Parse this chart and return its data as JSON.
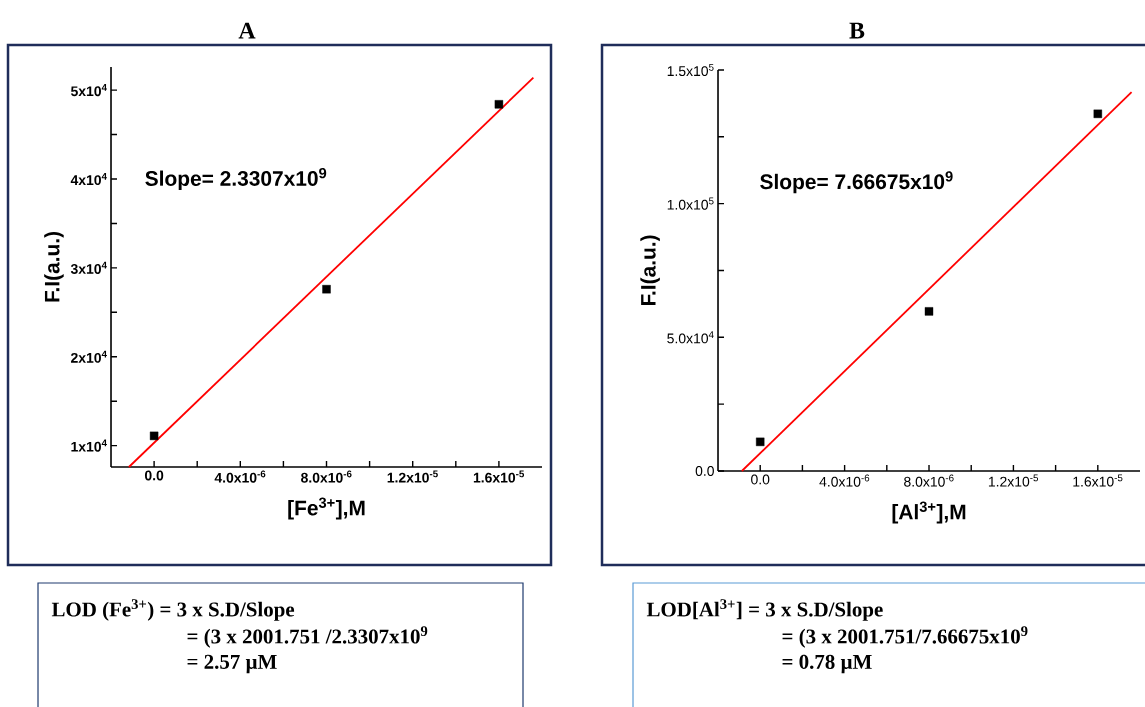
{
  "chart_data": [
    {
      "type": "scatter",
      "title": "A",
      "xlabel": "[Fe$^{3+}$],M",
      "ylabel": "F.I(a.u.)",
      "xlim": [
        -2e-06,
        1.8e-05
      ],
      "ylim": [
        7600,
        52600
      ],
      "xticks": [
        {
          "value": 0,
          "label": "0.0"
        },
        {
          "value": 2e-06,
          "label": null
        },
        {
          "value": 4e-06,
          "label": "4.0x10$^{-6}$"
        },
        {
          "value": 6e-06,
          "label": null
        },
        {
          "value": 8e-06,
          "label": "8.0x10$^{-6}$"
        },
        {
          "value": 1e-05,
          "label": null
        },
        {
          "value": 1.2e-05,
          "label": "1.2x10$^{-5}$"
        },
        {
          "value": 1.4e-05,
          "label": null
        },
        {
          "value": 1.6e-05,
          "label": "1.6x10$^{-5}$"
        }
      ],
      "yticks": [
        {
          "value": 10000,
          "label": "1x10$^{4}$"
        },
        {
          "value": 15000,
          "label": null
        },
        {
          "value": 20000,
          "label": "2x10$^{4}$"
        },
        {
          "value": 25000,
          "label": null
        },
        {
          "value": 30000,
          "label": "3x10$^{4}$"
        },
        {
          "value": 35000,
          "label": null
        },
        {
          "value": 40000,
          "label": "4x10$^{4}$"
        },
        {
          "value": 45000,
          "label": null
        },
        {
          "value": 50000,
          "label": "5x10$^{4}$"
        }
      ],
      "series": [
        {
          "marker": "square",
          "color": "#000000",
          "x": [
            0,
            8e-06,
            1.6e-05
          ],
          "values": [
            11100,
            27600,
            48400
          ]
        },
        {
          "type": "line",
          "marker": "none",
          "line_style": "solid",
          "color": "#ff0000",
          "x": [
            -1.17e-06,
            1.76e-05
          ],
          "values": [
            7600,
            51400
          ]
        }
      ],
      "annotations": [
        "Slope= 2.3307x10$^{9}$",
        "LOD (Fe$^{3+}$) = 3 x S.D/Slope",
        "= (3 x 2001.751 /2.3307x10$^{9}$",
        "= 2.57 µM"
      ]
    },
    {
      "type": "scatter",
      "title": "B",
      "xlabel": "[Al$^{3+}$],M",
      "ylabel": "F.I(a.u.)",
      "xlim": [
        -2e-06,
        1.8e-05
      ],
      "ylim": [
        0,
        150000
      ],
      "xticks": [
        {
          "value": 0,
          "label": "0.0"
        },
        {
          "value": 2e-06,
          "label": null
        },
        {
          "value": 4e-06,
          "label": "4.0x10$^{-6}$"
        },
        {
          "value": 6e-06,
          "label": null
        },
        {
          "value": 8e-06,
          "label": "8.0x10$^{-6}$"
        },
        {
          "value": 1e-05,
          "label": null
        },
        {
          "value": 1.2e-05,
          "label": "1.2x10$^{-5}$"
        },
        {
          "value": 1.4e-05,
          "label": null
        },
        {
          "value": 1.6e-05,
          "label": "1.6x10$^{-5}$"
        }
      ],
      "yticks": [
        {
          "value": 0,
          "label": "0.0"
        },
        {
          "value": 25000,
          "label": null
        },
        {
          "value": 50000,
          "label": "5.0x10$^{4}$"
        },
        {
          "value": 75000,
          "label": null
        },
        {
          "value": 100000,
          "label": "1.0x10$^{5}$"
        },
        {
          "value": 125000,
          "label": null
        },
        {
          "value": 150000,
          "label": "1.5x10$^{5}$"
        }
      ],
      "series": [
        {
          "marker": "square",
          "color": "#000000",
          "x": [
            0,
            8e-06,
            1.6e-05
          ],
          "values": [
            10900,
            59700,
            133600
          ]
        },
        {
          "type": "line",
          "marker": "none",
          "line_style": "solid",
          "color": "#ff0000",
          "x": [
            -8.7e-07,
            1.76e-05
          ],
          "values": [
            0,
            141700
          ]
        }
      ],
      "annotations": [
        "Slope= 7.66675x10$^{9}$",
        "LOD[Al$^{3+}$] = 3 x S.D/Slope",
        "= (3 x 2001.751/7.66675x10$^{9}$",
        "= 0.78 µM"
      ]
    }
  ]
}
